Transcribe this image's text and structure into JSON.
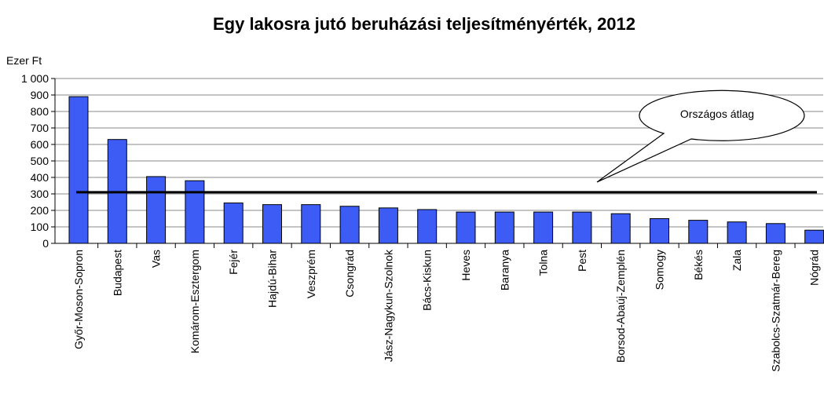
{
  "chart_data": {
    "type": "bar",
    "title": "Egy lakosra jutó beruházási teljesítményérték, 2012",
    "y_label": "Ezer Ft",
    "categories": [
      "Győr-Moson-Sopron",
      "Budapest",
      "Vas",
      "Komárom-Esztergom",
      "Fejér",
      "Hajdú-Bihar",
      "Veszprém",
      "Csongrád",
      "Jász-Nagykun-Szolnok",
      "Bács-Kiskun",
      "Heves",
      "Baranya",
      "Tolna",
      "Pest",
      "Borsod-Abaúj-Zemplén",
      "Somogy",
      "Békés",
      "Zala",
      "Szabolcs-Szatmár-Bereg",
      "Nógrád"
    ],
    "values": [
      890,
      630,
      405,
      380,
      245,
      235,
      235,
      225,
      215,
      205,
      190,
      190,
      190,
      190,
      180,
      150,
      140,
      130,
      120,
      80
    ],
    "color": "#3d5cf5",
    "average": {
      "label": "Országos átlag",
      "value": 310
    },
    "ylim": [
      0,
      1000
    ],
    "yticks": [
      0,
      100,
      200,
      300,
      400,
      500,
      600,
      700,
      800,
      900,
      {
        "value": 1000,
        "label": "1 000"
      }
    ],
    "grid": true
  }
}
